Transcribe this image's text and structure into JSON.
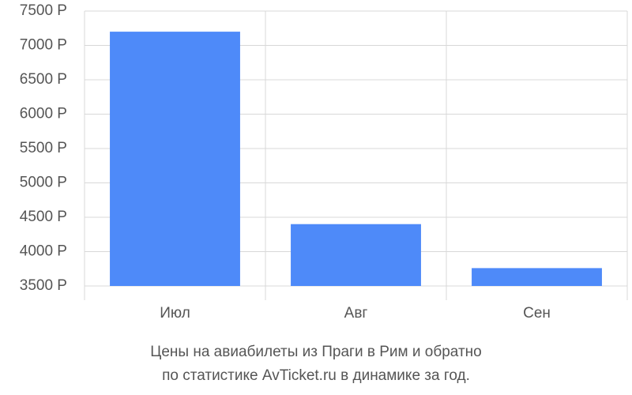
{
  "chart_data": {
    "type": "bar",
    "title": [
      "Цены на авиабилеты из Праги в Рим и обратно",
      "по статистике AvTicket.ru в динамике за год."
    ],
    "categories": [
      "Июл",
      "Авг",
      "Сен"
    ],
    "values": [
      7200,
      4400,
      3760
    ],
    "color": "#4e8af9",
    "ylim": [
      3500,
      7500
    ],
    "yticks": [
      {
        "value": 3500,
        "label": "3500 Р"
      },
      {
        "value": 4000,
        "label": "4000 Р"
      },
      {
        "value": 4500,
        "label": "4500 Р"
      },
      {
        "value": 5000,
        "label": "5000 Р"
      },
      {
        "value": 5500,
        "label": "5500 Р"
      },
      {
        "value": 6000,
        "label": "6000 Р"
      },
      {
        "value": 6500,
        "label": "6500 Р"
      },
      {
        "value": 7000,
        "label": "7000 Р"
      },
      {
        "value": 7500,
        "label": "7500 Р"
      }
    ],
    "grid": true
  }
}
